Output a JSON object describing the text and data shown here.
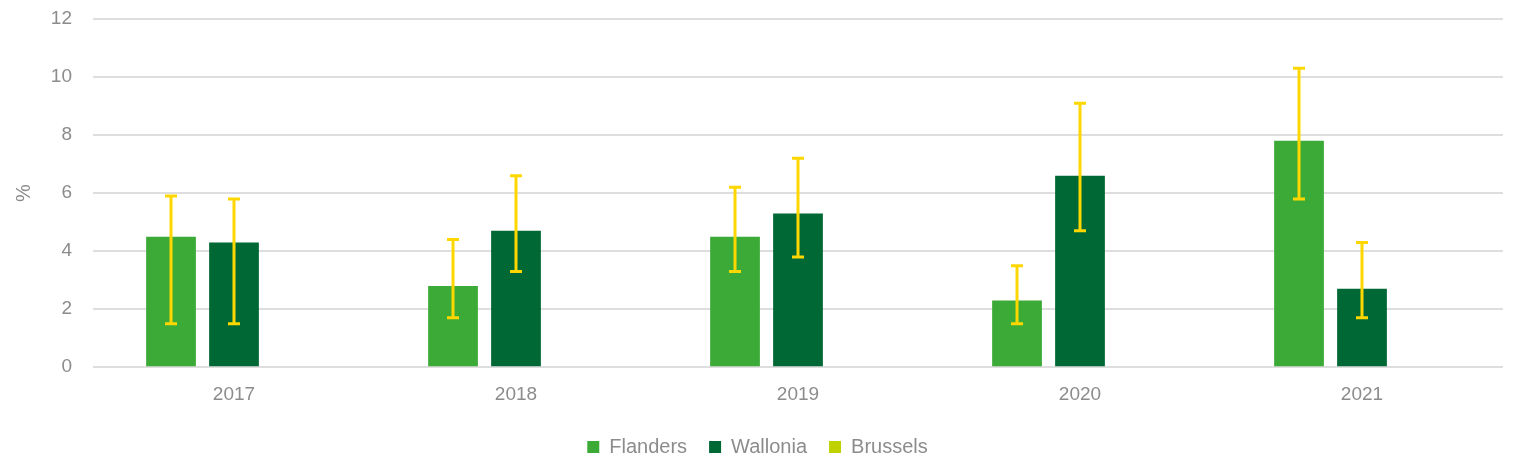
{
  "chart_data": {
    "type": "bar",
    "ylabel": "%",
    "categories": [
      "2017",
      "2018",
      "2019",
      "2020",
      "2021"
    ],
    "series": [
      {
        "name": "Flanders",
        "color": "#3caa36",
        "values": [
          4.5,
          2.8,
          4.5,
          2.3,
          7.8
        ],
        "errors": [
          [
            1.5,
            5.9
          ],
          [
            1.7,
            4.4
          ],
          [
            3.3,
            6.2
          ],
          [
            1.5,
            3.5
          ],
          [
            5.8,
            10.3
          ]
        ]
      },
      {
        "name": "Wallonia",
        "color": "#006834",
        "values": [
          4.3,
          4.7,
          5.3,
          6.6,
          2.7
        ],
        "errors": [
          [
            1.5,
            5.8
          ],
          [
            3.3,
            6.6
          ],
          [
            3.8,
            7.2
          ],
          [
            4.7,
            9.1
          ],
          [
            1.7,
            4.3
          ]
        ]
      },
      {
        "name": "Brussels",
        "color": "#bfd200",
        "values": [
          null,
          null,
          null,
          null,
          null
        ]
      }
    ],
    "ylim": [
      0,
      12
    ],
    "yticks": [
      0,
      2,
      4,
      6,
      8,
      10,
      12
    ],
    "grid": "y",
    "legend": "bottom"
  }
}
